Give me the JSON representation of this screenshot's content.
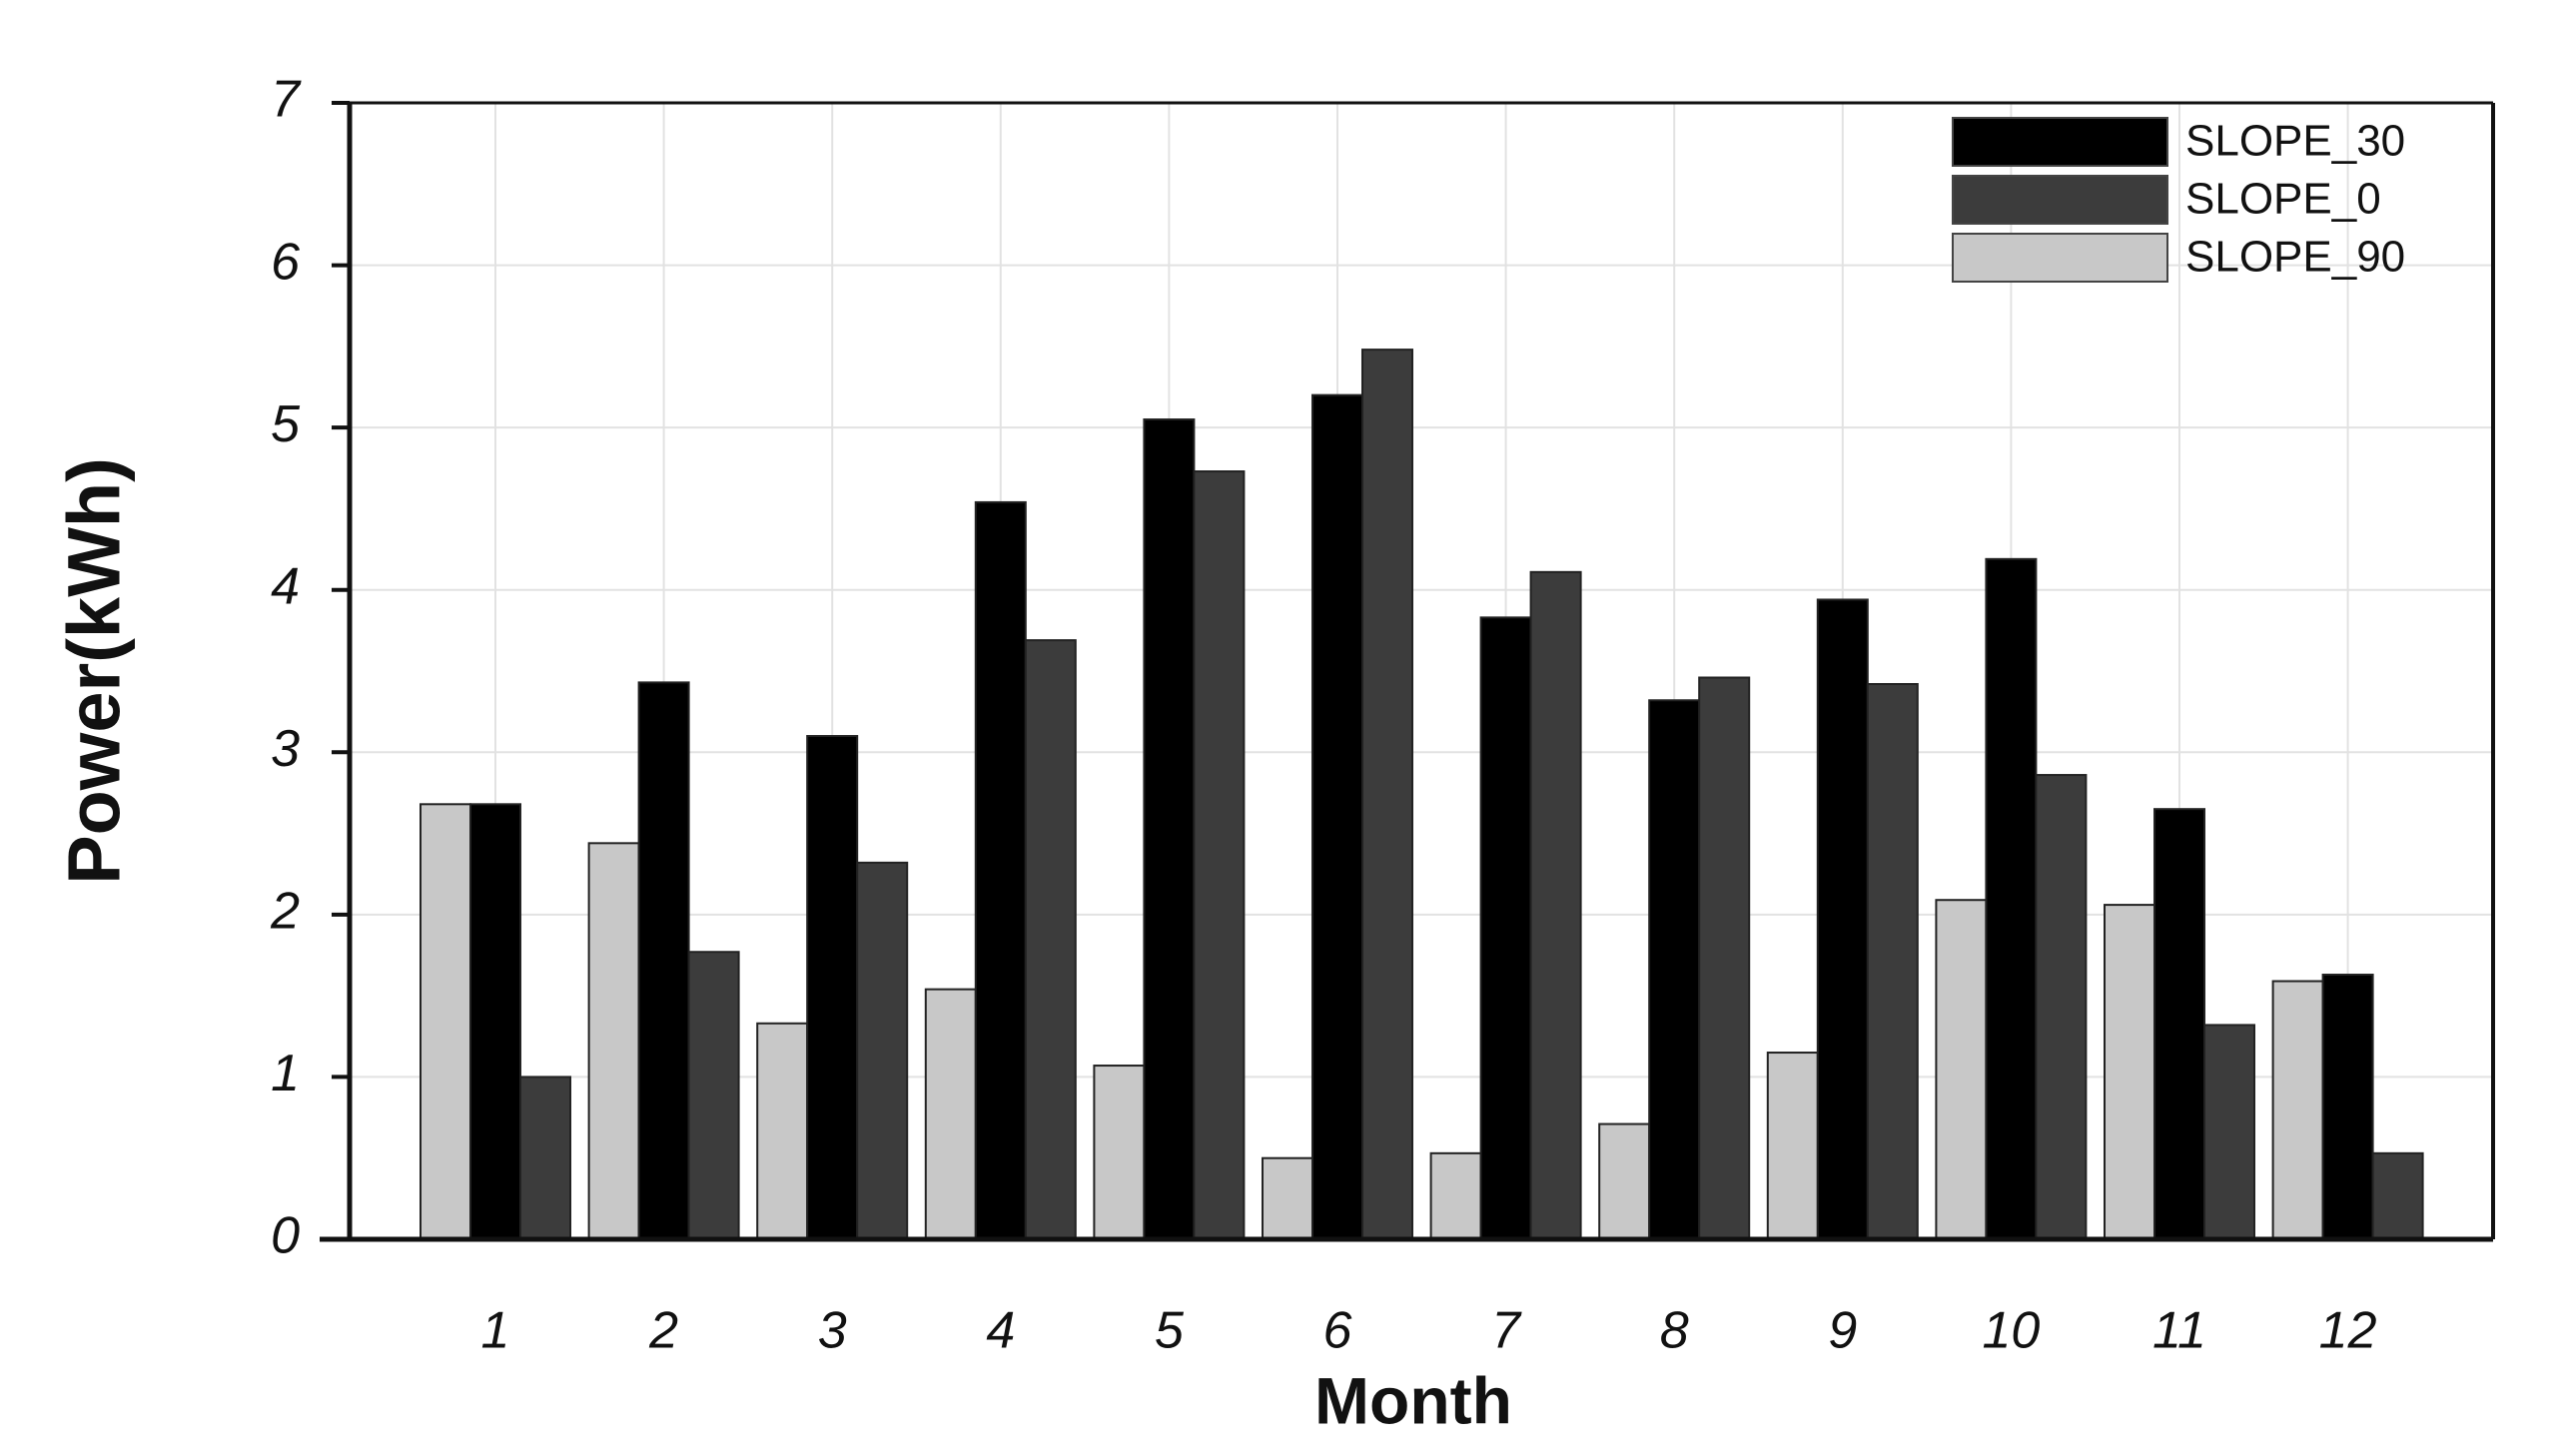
{
  "chart_data": {
    "type": "bar",
    "x_label": "Month",
    "y_label": "Power(kWh)",
    "categories": [
      "1",
      "2",
      "3",
      "4",
      "5",
      "6",
      "7",
      "8",
      "9",
      "10",
      "11",
      "12"
    ],
    "series": [
      {
        "name": "SLOPE_90",
        "color": "#c8c8c8",
        "values": [
          2.68,
          2.44,
          1.33,
          1.54,
          1.07,
          0.5,
          0.53,
          0.71,
          1.15,
          2.09,
          2.06,
          1.59
        ]
      },
      {
        "name": "SLOPE_30",
        "color": "#000000",
        "values": [
          2.68,
          3.43,
          3.1,
          4.54,
          5.05,
          5.2,
          3.83,
          3.32,
          3.94,
          4.19,
          2.65,
          1.63
        ]
      },
      {
        "name": "SLOPE_0",
        "color": "#3c3c3c",
        "values": [
          1.0,
          1.77,
          2.32,
          3.69,
          4.73,
          5.48,
          4.11,
          3.46,
          3.42,
          2.86,
          1.32,
          0.53
        ]
      }
    ],
    "legend_order": [
      1,
      2,
      0
    ],
    "legend": "upper right",
    "ylim": [
      0,
      7
    ],
    "yticks": [
      0,
      1,
      2,
      3,
      4,
      5,
      6,
      7
    ],
    "grid": true
  }
}
